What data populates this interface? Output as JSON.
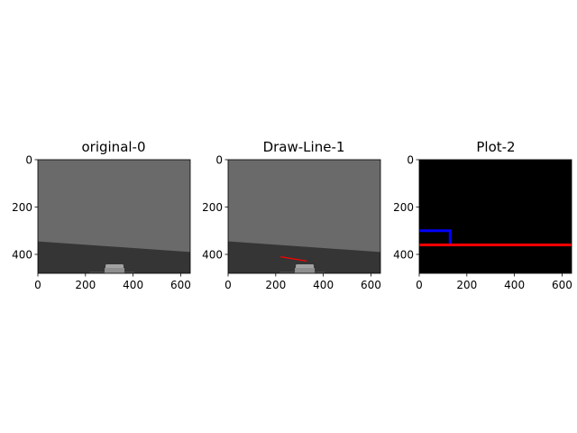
{
  "colors": {
    "background": "#ffffff",
    "sky": "#6a6a6a",
    "road": "#353535",
    "car_body": "#8e8e8e",
    "car_roof": "#a2a2a2",
    "car_shadow": "#4a4a4a",
    "black": "#000000",
    "line_red": "#ff0000",
    "line_blue": "#0000ff"
  },
  "panels": [
    {
      "title": "original-0",
      "kind": "image",
      "x_ticks": [
        "0",
        "200",
        "400",
        "600"
      ],
      "y_ticks": [
        "0",
        "200",
        "400"
      ]
    },
    {
      "title": "Draw-Line-1",
      "kind": "image-with-line",
      "x_ticks": [
        "0",
        "200",
        "400",
        "600"
      ],
      "y_ticks": [
        "0",
        "200",
        "400"
      ]
    },
    {
      "title": "Plot-2",
      "kind": "plot",
      "x_ticks": [
        "0",
        "200",
        "400",
        "600"
      ],
      "y_ticks": [
        "0",
        "200",
        "400"
      ]
    }
  ],
  "chart_data": [
    {
      "type": "image",
      "title": "original-0",
      "xlim": [
        0,
        640
      ],
      "ylim": [
        480,
        0
      ],
      "scene": {
        "horizon_left_y": 345,
        "horizon_right_y": 390,
        "car_center_x": 322,
        "car_top_y": 435
      }
    },
    {
      "type": "image",
      "title": "Draw-Line-1",
      "xlim": [
        0,
        640
      ],
      "ylim": [
        480,
        0
      ],
      "scene": {
        "horizon_left_y": 345,
        "horizon_right_y": 390,
        "car_center_x": 322,
        "car_top_y": 435
      },
      "series": [
        {
          "color": "#ff0000",
          "points": [
            [
              220,
              410
            ],
            [
              330,
              428
            ]
          ]
        }
      ]
    },
    {
      "type": "line",
      "title": "Plot-2",
      "xlim": [
        0,
        640
      ],
      "ylim": [
        480,
        0
      ],
      "series": [
        {
          "color": "#0000ff",
          "points": [
            [
              0,
              300
            ],
            [
              130,
              300
            ],
            [
              130,
              360
            ]
          ]
        },
        {
          "color": "#ff0000",
          "points": [
            [
              0,
              360
            ],
            [
              640,
              360
            ]
          ]
        }
      ]
    }
  ]
}
